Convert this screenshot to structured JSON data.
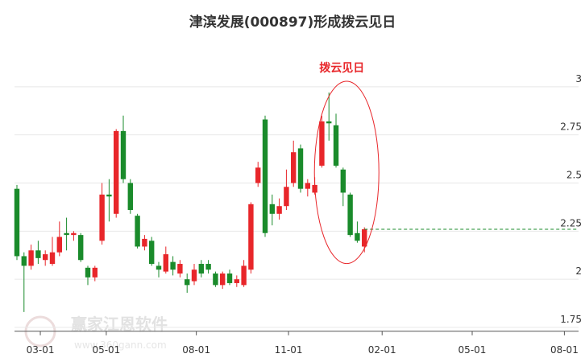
{
  "chart_data": {
    "type": "candlestick",
    "title": "津滨发展(000897)形成拨云见日",
    "annotation": "拨云见日",
    "watermark": [
      "赢家江恩软件",
      "www.360gann.com"
    ],
    "up_color": "#e8262a",
    "down_color": "#1a8b2b",
    "grid": true,
    "x": [
      0,
      1,
      2,
      3,
      4,
      5,
      6,
      7,
      8,
      9,
      10,
      11,
      12,
      13,
      14,
      15,
      16,
      17,
      18,
      19,
      20,
      21,
      22,
      23,
      24,
      25,
      26,
      27,
      28,
      29,
      30,
      31,
      32,
      33,
      34,
      35,
      36,
      37,
      38,
      39,
      40,
      41,
      42,
      43,
      44,
      45,
      46,
      47,
      48,
      49
    ],
    "open": [
      2.47,
      2.12,
      2.07,
      2.15,
      2.1,
      2.08,
      2.14,
      2.24,
      2.23,
      2.23,
      2.06,
      2.01,
      2.2,
      2.44,
      2.34,
      2.77,
      2.5,
      2.33,
      2.17,
      2.2,
      2.07,
      2.04,
      2.09,
      2.03,
      2.0,
      1.99,
      2.08,
      2.08,
      2.03,
      1.97,
      2.03,
      1.98,
      1.97,
      2.05,
      2.5,
      2.83,
      2.39,
      2.34,
      2.38,
      2.5,
      2.68,
      2.47,
      2.45,
      2.59,
      2.82,
      2.8,
      2.57,
      2.44,
      2.24,
      2.17
    ],
    "close": [
      2.12,
      2.07,
      2.15,
      2.11,
      2.13,
      2.14,
      2.22,
      2.23,
      2.24,
      2.1,
      2.01,
      2.06,
      2.44,
      2.43,
      2.77,
      2.52,
      2.36,
      2.17,
      2.21,
      2.08,
      2.05,
      2.13,
      2.05,
      2.08,
      1.97,
      2.05,
      2.03,
      2.05,
      1.97,
      2.03,
      1.98,
      2.0,
      2.07,
      2.39,
      2.58,
      2.24,
      2.34,
      2.38,
      2.48,
      2.66,
      2.47,
      2.5,
      2.49,
      2.82,
      2.81,
      2.59,
      2.45,
      2.23,
      2.2,
      2.26
    ],
    "high": [
      2.49,
      2.14,
      2.18,
      2.2,
      2.15,
      2.22,
      2.3,
      2.32,
      2.25,
      2.24,
      2.07,
      2.07,
      2.5,
      2.52,
      2.78,
      2.85,
      2.52,
      2.34,
      2.23,
      2.22,
      2.09,
      2.17,
      2.12,
      2.1,
      2.03,
      2.08,
      2.1,
      2.1,
      2.04,
      2.04,
      2.05,
      2.02,
      2.1,
      2.4,
      2.61,
      2.85,
      2.44,
      2.42,
      2.57,
      2.72,
      2.7,
      2.52,
      2.53,
      2.85,
      2.97,
      2.86,
      2.58,
      2.45,
      2.3,
      2.27
    ],
    "low": [
      2.1,
      1.83,
      2.05,
      2.08,
      2.07,
      2.07,
      2.12,
      2.15,
      2.2,
      2.09,
      1.97,
      1.99,
      2.18,
      2.3,
      2.32,
      2.5,
      2.34,
      2.16,
      2.15,
      2.07,
      2.01,
      2.03,
      2.02,
      2.01,
      1.93,
      1.97,
      2.01,
      2.03,
      1.96,
      1.95,
      1.97,
      1.96,
      1.96,
      2.03,
      2.48,
      2.22,
      2.28,
      2.31,
      2.36,
      2.48,
      2.45,
      2.43,
      2.44,
      2.58,
      2.72,
      2.58,
      2.38,
      2.22,
      2.19,
      2.14
    ],
    "xlim": [
      -0.34,
      79.2
    ],
    "ylim": [
      1.73,
      3.28
    ],
    "xticks": [
      {
        "value": 3.3,
        "label": "03-01"
      },
      {
        "value": 12.6,
        "label": "05-01"
      },
      {
        "value": 25.3,
        "label": "08-01"
      },
      {
        "value": 38.3,
        "label": "11-01"
      },
      {
        "value": 51.5,
        "label": "02-01"
      },
      {
        "value": 64.2,
        "label": "05-01"
      },
      {
        "value": 77.2,
        "label": "08-01"
      }
    ],
    "yticks": [
      1.75,
      2,
      2.25,
      2.5,
      2.75,
      3
    ]
  }
}
